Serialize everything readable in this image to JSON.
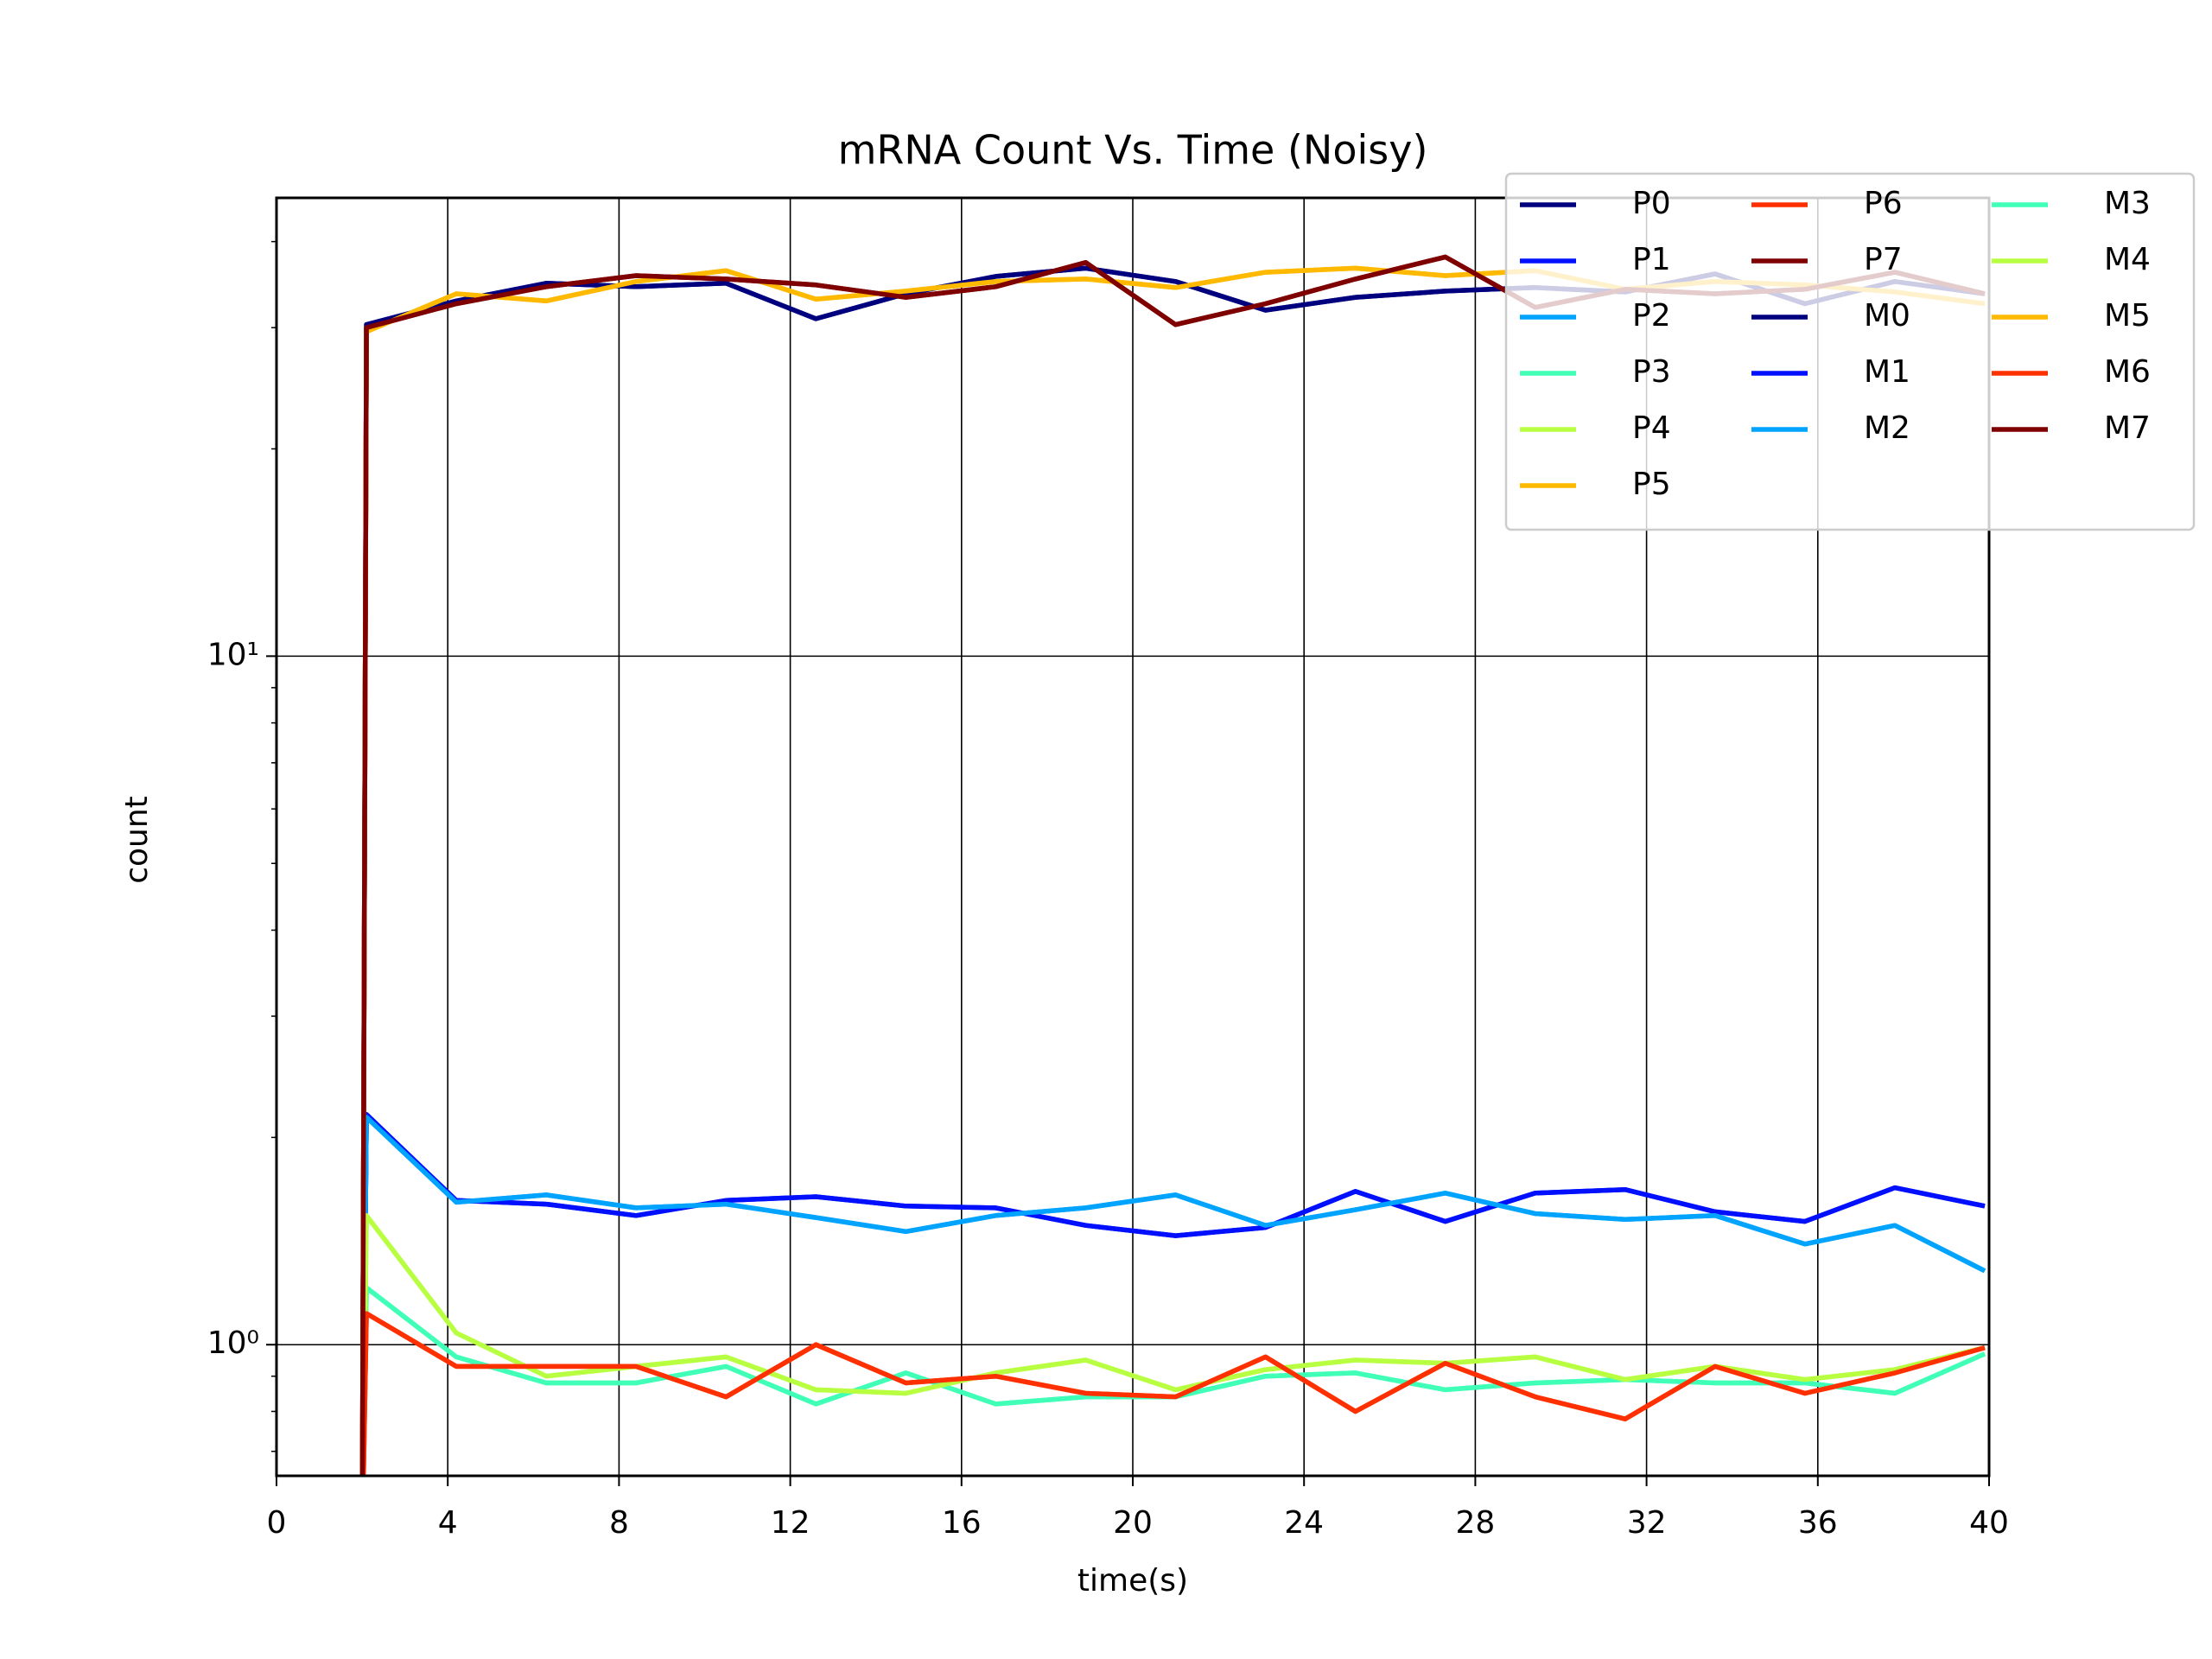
{
  "chart_data": {
    "type": "line",
    "title": "mRNA Count Vs. Time (Noisy)",
    "xlabel": "time(s)",
    "ylabel": "count",
    "x": [
      2,
      2.1,
      4.2,
      6.3,
      8.4,
      10.5,
      12.6,
      14.7,
      16.8,
      18.9,
      21.0,
      23.1,
      25.2,
      27.3,
      29.4,
      31.5,
      33.6,
      35.7,
      37.8,
      39.9
    ],
    "xlim": [
      0,
      40
    ],
    "xticks": [
      0,
      4,
      8,
      12,
      16,
      20,
      24,
      28,
      32,
      36,
      40
    ],
    "ylim": [
      0.645,
      46.3
    ],
    "log_y": true,
    "yticks": [
      {
        "value": 1,
        "label": "10⁰"
      },
      {
        "value": 10,
        "label": "10¹"
      }
    ],
    "yminor_ticks": [
      0.7,
      0.8,
      0.9,
      2,
      3,
      4,
      5,
      6,
      7,
      8,
      9,
      20,
      30,
      40
    ],
    "grid": true,
    "legend": "upper right",
    "legend_ncol": 3,
    "series": [
      {
        "name": "P0",
        "color": "#00007f",
        "values": [
          0.5,
          30.3,
          32.8,
          34.8,
          34.4,
          34.8,
          30.9,
          33.6,
          35.6,
          36.6,
          35.0,
          31.8,
          33.2,
          33.9,
          34.3,
          33.8,
          35.9,
          32.5,
          35.0,
          33.6
        ]
      },
      {
        "name": "P1",
        "color": "#0010ff",
        "values": [
          0.5,
          2.16,
          1.62,
          1.6,
          1.54,
          1.62,
          1.64,
          1.59,
          1.58,
          1.49,
          1.44,
          1.48,
          1.67,
          1.51,
          1.66,
          1.68,
          1.56,
          1.51,
          1.69,
          1.59
        ]
      },
      {
        "name": "P2",
        "color": "#00a4ff",
        "values": [
          0.5,
          2.14,
          1.61,
          1.65,
          1.58,
          1.6,
          1.53,
          1.46,
          1.54,
          1.58,
          1.65,
          1.49,
          1.57,
          1.66,
          1.55,
          1.52,
          1.54,
          1.4,
          1.49,
          1.28
        ]
      },
      {
        "name": "P3",
        "color": "#40ffb7",
        "values": [
          0.5,
          1.21,
          0.96,
          0.88,
          0.88,
          0.93,
          0.82,
          0.91,
          0.82,
          0.84,
          0.84,
          0.9,
          0.91,
          0.86,
          0.88,
          0.89,
          0.88,
          0.88,
          0.85,
          0.97
        ]
      },
      {
        "name": "P4",
        "color": "#b7ff40",
        "values": [
          0.5,
          1.54,
          1.04,
          0.9,
          0.93,
          0.96,
          0.86,
          0.85,
          0.91,
          0.95,
          0.86,
          0.92,
          0.95,
          0.94,
          0.96,
          0.89,
          0.93,
          0.89,
          0.92,
          0.99
        ]
      },
      {
        "name": "P5",
        "color": "#ffb900",
        "values": [
          0.5,
          29.6,
          33.6,
          32.8,
          35.0,
          36.3,
          33.0,
          33.9,
          35.0,
          35.3,
          34.3,
          36.1,
          36.6,
          35.7,
          36.3,
          34.1,
          35.0,
          34.6,
          33.8,
          32.5
        ]
      },
      {
        "name": "P6",
        "color": "#ff3000",
        "values": [
          0.5,
          1.11,
          0.93,
          0.93,
          0.93,
          0.84,
          1.0,
          0.88,
          0.9,
          0.85,
          0.84,
          0.96,
          0.8,
          0.94,
          0.84,
          0.78,
          0.93,
          0.85,
          0.91,
          0.99
        ]
      },
      {
        "name": "P7",
        "color": "#7f0000",
        "values": [
          0.5,
          30.0,
          32.5,
          34.4,
          35.7,
          35.3,
          34.6,
          33.2,
          34.4,
          37.3,
          30.3,
          32.5,
          35.3,
          38.0,
          32.1,
          34.1,
          33.6,
          34.1,
          36.1,
          33.6
        ]
      },
      {
        "name": "M0",
        "color": "#00007f",
        "values": [
          0.5,
          30.3,
          32.8,
          34.8,
          34.4,
          34.8,
          30.9,
          33.6,
          35.6,
          36.6,
          35.0,
          31.8,
          33.2,
          33.9,
          34.3,
          33.8,
          35.9,
          32.5,
          35.0,
          33.6
        ]
      },
      {
        "name": "M1",
        "color": "#0010ff",
        "values": [
          0.5,
          2.16,
          1.62,
          1.6,
          1.54,
          1.62,
          1.64,
          1.59,
          1.58,
          1.49,
          1.44,
          1.48,
          1.67,
          1.51,
          1.66,
          1.68,
          1.56,
          1.51,
          1.69,
          1.59
        ]
      },
      {
        "name": "M2",
        "color": "#00a4ff",
        "values": [
          0.5,
          2.14,
          1.61,
          1.65,
          1.58,
          1.6,
          1.53,
          1.46,
          1.54,
          1.58,
          1.65,
          1.49,
          1.57,
          1.66,
          1.55,
          1.52,
          1.54,
          1.4,
          1.49,
          1.28
        ]
      },
      {
        "name": "M3",
        "color": "#40ffb7",
        "values": [
          0.5,
          1.21,
          0.96,
          0.88,
          0.88,
          0.93,
          0.82,
          0.91,
          0.82,
          0.84,
          0.84,
          0.9,
          0.91,
          0.86,
          0.88,
          0.89,
          0.88,
          0.88,
          0.85,
          0.97
        ]
      },
      {
        "name": "M4",
        "color": "#b7ff40",
        "values": [
          0.5,
          1.54,
          1.04,
          0.9,
          0.93,
          0.96,
          0.86,
          0.85,
          0.91,
          0.95,
          0.86,
          0.92,
          0.95,
          0.94,
          0.96,
          0.89,
          0.93,
          0.89,
          0.92,
          0.99
        ]
      },
      {
        "name": "M5",
        "color": "#ffb900",
        "values": [
          0.5,
          29.6,
          33.6,
          32.8,
          35.0,
          36.3,
          33.0,
          33.9,
          35.0,
          35.3,
          34.3,
          36.1,
          36.6,
          35.7,
          36.3,
          34.1,
          35.0,
          34.6,
          33.8,
          32.5
        ]
      },
      {
        "name": "M6",
        "color": "#ff3000",
        "values": [
          0.5,
          1.11,
          0.93,
          0.93,
          0.93,
          0.84,
          1.0,
          0.88,
          0.9,
          0.85,
          0.84,
          0.96,
          0.8,
          0.94,
          0.84,
          0.78,
          0.93,
          0.85,
          0.91,
          0.99
        ]
      },
      {
        "name": "M7",
        "color": "#7f0000",
        "values": [
          0.5,
          30.0,
          32.5,
          34.4,
          35.7,
          35.3,
          34.6,
          33.2,
          34.4,
          37.3,
          30.3,
          32.5,
          35.3,
          38.0,
          32.1,
          34.1,
          33.6,
          34.1,
          36.1,
          33.6
        ]
      }
    ]
  }
}
